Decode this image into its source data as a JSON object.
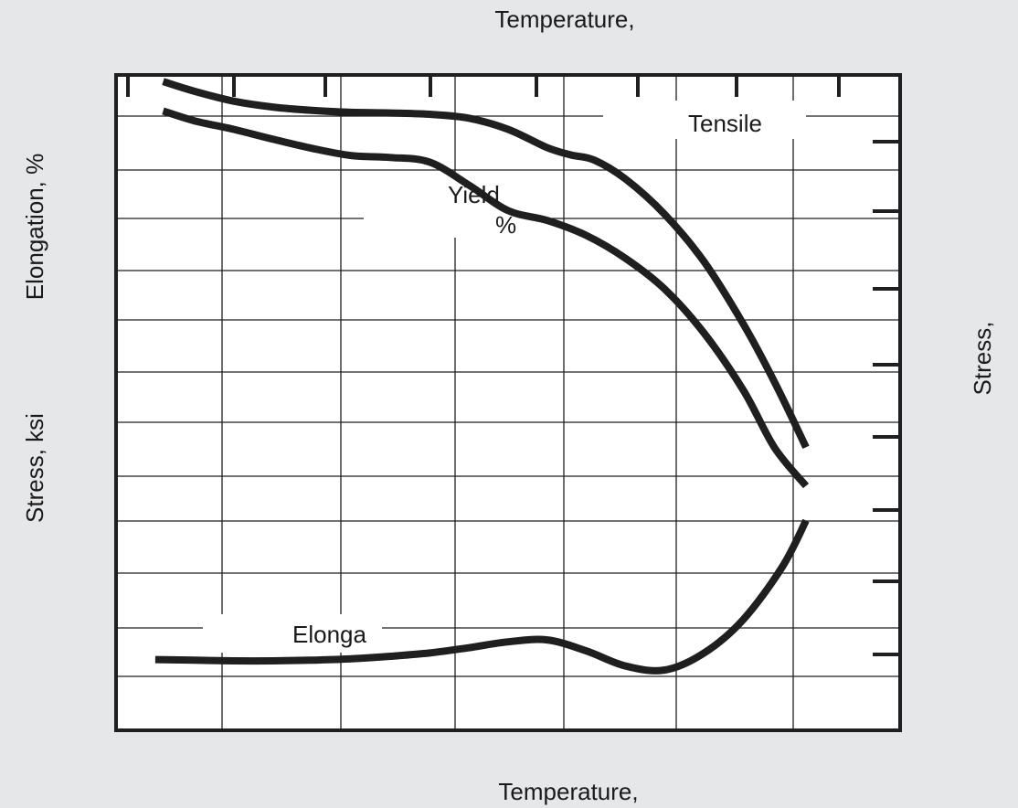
{
  "chart_data": {
    "type": "line",
    "top_axis_label": "Temperature,",
    "bottom_axis_label": "Temperature,",
    "left_axis_label_upper": "Elongation, %",
    "left_axis_label_lower": "Stress, ksi",
    "right_axis_label": "Stress,",
    "grid": true,
    "x_range": [
      0,
      100
    ],
    "y_range": [
      0,
      100
    ],
    "annotations": [
      {
        "name": "tensile",
        "text": "Tensile"
      },
      {
        "name": "yield",
        "text": "Yield"
      },
      {
        "name": "percent",
        "text": "%"
      },
      {
        "name": "elongation",
        "text": "Elonga"
      }
    ],
    "series": [
      {
        "name": "Tensile",
        "points": [
          [
            6,
            99
          ],
          [
            10,
            97.5
          ],
          [
            15,
            96
          ],
          [
            20,
            95.1
          ],
          [
            25,
            94.6
          ],
          [
            30,
            94.3
          ],
          [
            35,
            94.2
          ],
          [
            40,
            94
          ],
          [
            45,
            93.4
          ],
          [
            50,
            91.7
          ],
          [
            55,
            88.9
          ],
          [
            58,
            87.8
          ],
          [
            61,
            87
          ],
          [
            65,
            84.1
          ],
          [
            70,
            78.7
          ],
          [
            75,
            71.5
          ],
          [
            80,
            62
          ],
          [
            84,
            53.1
          ],
          [
            88,
            43.2
          ]
        ]
      },
      {
        "name": "Yield",
        "points": [
          [
            6,
            94.5
          ],
          [
            10,
            93
          ],
          [
            15,
            91.7
          ],
          [
            20,
            90.2
          ],
          [
            25,
            88.8
          ],
          [
            30,
            87.7
          ],
          [
            35,
            87.4
          ],
          [
            40,
            86.7
          ],
          [
            45,
            83.2
          ],
          [
            50,
            79.3
          ],
          [
            55,
            77.8
          ],
          [
            60,
            75.5
          ],
          [
            65,
            72
          ],
          [
            70,
            67.3
          ],
          [
            75,
            60.6
          ],
          [
            80,
            51.9
          ],
          [
            84,
            43.1
          ],
          [
            88,
            37.3
          ]
        ]
      },
      {
        "name": "Elongation",
        "points": [
          [
            5,
            10.8
          ],
          [
            10,
            10.7
          ],
          [
            15,
            10.6
          ],
          [
            20,
            10.6
          ],
          [
            25,
            10.7
          ],
          [
            30,
            10.9
          ],
          [
            35,
            11.3
          ],
          [
            40,
            11.8
          ],
          [
            45,
            12.6
          ],
          [
            50,
            13.5
          ],
          [
            55,
            13.8
          ],
          [
            60,
            12.1
          ],
          [
            65,
            9.8
          ],
          [
            70,
            9.2
          ],
          [
            75,
            11.8
          ],
          [
            80,
            16.9
          ],
          [
            85,
            25
          ],
          [
            88,
            32
          ]
        ]
      }
    ]
  }
}
